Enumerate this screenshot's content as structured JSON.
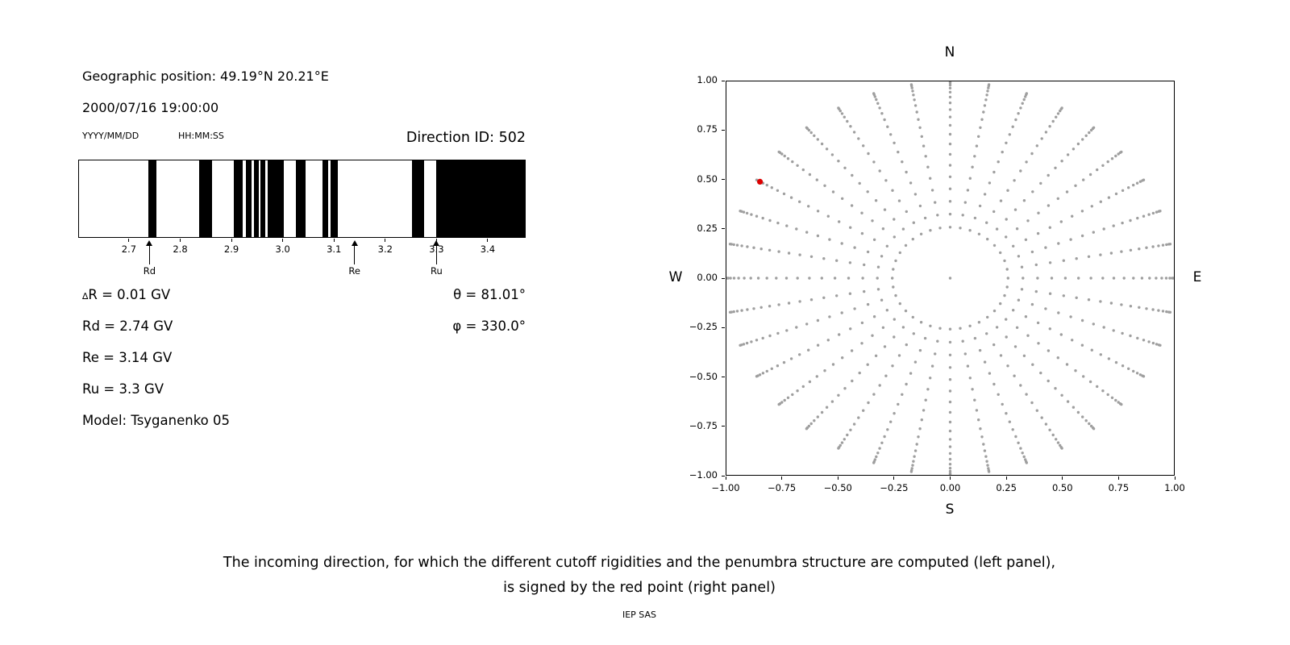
{
  "left_panel": {
    "geo_position": "Geographic position: 49.19°N 20.21°E",
    "datetime": "2000/07/16 19:00:00",
    "date_format_label": "YYYY/MM/DD",
    "time_format_label": "HH:MM:SS",
    "direction_id": "Direction ID: 502",
    "delta_symbol": "∆",
    "delta_rest": "R = 0.01 GV",
    "params": [
      "Rd = 2.74 GV",
      "Re = 3.14 GV",
      "Ru = 3.3 GV",
      "Model: Tsyganenko 05"
    ],
    "theta": "θ = 81.01°",
    "phi": "φ = 330.0°"
  },
  "caption": {
    "line1": "The incoming direction, for which the different cutoff rigidities and the penumbra structure are computed (left panel),",
    "line2": "is signed by the red point (right panel)",
    "credit": "IEP SAS"
  },
  "chart_data": [
    {
      "type": "bar",
      "name": "penumbra-structure",
      "xlim": [
        2.601,
        3.474
      ],
      "xticks": [
        2.7,
        2.8,
        2.9,
        3.0,
        3.1,
        3.2,
        3.3,
        3.4
      ],
      "xtick_labels": [
        "2.7",
        "2.8",
        "2.9",
        "3.0",
        "3.1",
        "3.2",
        "3.3",
        "3.4"
      ],
      "bands_gv": [
        [
          2.737,
          2.752
        ],
        [
          2.836,
          2.861
        ],
        [
          2.904,
          2.922
        ],
        [
          2.927,
          2.939
        ],
        [
          2.944,
          2.953
        ],
        [
          2.956,
          2.966
        ],
        [
          2.971,
          3.002
        ],
        [
          3.026,
          3.045
        ],
        [
          3.077,
          3.089
        ],
        [
          3.093,
          3.108
        ],
        [
          3.253,
          3.276
        ],
        [
          3.301,
          3.474
        ]
      ],
      "band_color": "#000000",
      "cutoffs": [
        {
          "label": "Rd",
          "value_gv": 2.74
        },
        {
          "label": "Re",
          "value_gv": 3.14
        },
        {
          "label": "Ru",
          "value_gv": 3.3
        }
      ]
    },
    {
      "type": "scatter",
      "name": "incoming-direction-map",
      "xlim": [
        -1,
        1
      ],
      "ylim": [
        -1,
        1
      ],
      "grid": false,
      "xticks": [
        -1,
        -0.75,
        -0.5,
        -0.25,
        0,
        0.25,
        0.5,
        0.75,
        1
      ],
      "xtick_labels": [
        "−1.00",
        "−0.75",
        "−0.50",
        "−0.25",
        "0.00",
        "0.25",
        "0.50",
        "0.75",
        "1.00"
      ],
      "yticks": [
        -1,
        -0.75,
        -0.5,
        -0.25,
        0,
        0.25,
        0.5,
        0.75,
        1
      ],
      "ytick_labels": [
        "−1.00",
        "−0.75",
        "−0.50",
        "−0.25",
        "0.00",
        "0.25",
        "0.50",
        "0.75",
        "1.00"
      ],
      "compass_labels": {
        "top": "N",
        "bottom": "S",
        "left": "W",
        "right": "E"
      },
      "dot_grid": {
        "azimuth_deg_step": 10,
        "azimuth_count": 36,
        "zenith_deg_start": 15,
        "zenith_deg_end": 87,
        "zenith_deg_step": 4,
        "radius_rule": "sin(zenith)",
        "color": "#9f9f9f",
        "center_dot": true
      },
      "red_point": {
        "x": -0.85,
        "y": 0.49,
        "color": "#dd0000"
      }
    }
  ]
}
